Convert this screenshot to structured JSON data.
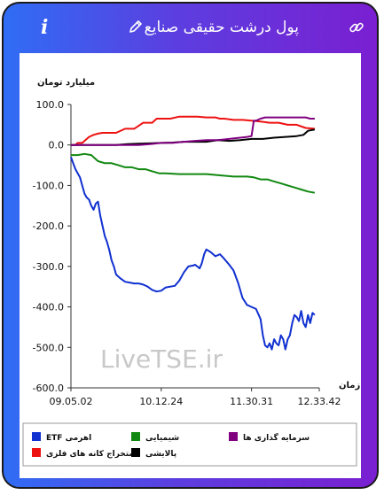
{
  "header": {
    "title": "پول درشت حقیقی صنایع",
    "info_icon": "i",
    "edit_icon": "pencil-icon",
    "link_icon": "link-icon"
  },
  "watermark": "LiveTSE.ir",
  "colors": {
    "frame_start": "#2f6df5",
    "frame_end": "#7a1fd1",
    "etf": "#1030d0",
    "mining": "#ee1111",
    "chemicals": "#118811",
    "refinery": "#000000",
    "investment": "#800080"
  },
  "chart_data": {
    "type": "line",
    "ylabel": "میلیارد تومان",
    "xlabel": "زمان",
    "ylim": [
      -600,
      100
    ],
    "yticks": [
      "100.0",
      "0.0",
      "-100.0",
      "-200.0",
      "-300.0",
      "-400.0",
      "-500.0",
      "-600.0"
    ],
    "ytick_values": [
      100,
      0,
      -100,
      -200,
      -300,
      -400,
      -500,
      -600
    ],
    "x_tick_labels": [
      "09.05.02",
      "10.12.24",
      "11.30.31",
      "12.33.42"
    ],
    "x_tick_positions": [
      0,
      40,
      80,
      110
    ],
    "x_range": [
      0,
      110
    ],
    "grid": false,
    "legend_position": "bottom",
    "series": [
      {
        "name": "ETF اهرمی",
        "color": "#1030d0",
        "x": [
          0,
          1,
          2,
          3,
          4,
          5,
          6,
          7,
          8,
          9,
          10,
          11,
          12,
          13,
          14,
          15,
          16,
          17,
          18,
          19,
          20,
          22,
          24,
          26,
          28,
          30,
          32,
          34,
          36,
          38,
          40,
          42,
          44,
          46,
          48,
          50,
          52,
          54,
          55,
          56,
          57,
          58,
          59,
          60,
          62,
          64,
          66,
          68,
          70,
          72,
          74,
          76,
          78,
          80,
          82,
          84,
          85,
          86,
          87,
          88,
          89,
          90,
          91,
          92,
          93,
          94,
          95,
          96,
          97,
          98,
          99,
          100,
          101,
          102,
          103,
          104,
          105,
          106,
          107,
          108
        ],
        "values": [
          -30,
          -45,
          -60,
          -70,
          -80,
          -100,
          -120,
          -130,
          -135,
          -150,
          -160,
          -145,
          -140,
          -175,
          -200,
          -225,
          -240,
          -260,
          -285,
          -300,
          -320,
          -330,
          -338,
          -340,
          -342,
          -342,
          -345,
          -350,
          -358,
          -362,
          -360,
          -352,
          -350,
          -348,
          -335,
          -315,
          -300,
          -298,
          -296,
          -300,
          -305,
          -292,
          -270,
          -258,
          -265,
          -275,
          -270,
          -282,
          -295,
          -310,
          -340,
          -378,
          -395,
          -400,
          -405,
          -430,
          -470,
          -495,
          -500,
          -490,
          -505,
          -480,
          -490,
          -495,
          -470,
          -480,
          -505,
          -480,
          -470,
          -440,
          -420,
          -425,
          -435,
          -410,
          -440,
          -450,
          -420,
          -440,
          -415,
          -420
        ]
      },
      {
        "name": "استخراج کانه های فلزی",
        "color": "#ee1111",
        "x": [
          0,
          2,
          3,
          5,
          6,
          8,
          10,
          12,
          14,
          16,
          20,
          24,
          28,
          32,
          36,
          38,
          40,
          44,
          48,
          52,
          56,
          60,
          64,
          66,
          68,
          72,
          76,
          80,
          84,
          88,
          90,
          92,
          96,
          100,
          104,
          108
        ],
        "values": [
          0,
          0,
          5,
          5,
          10,
          20,
          25,
          28,
          30,
          30,
          30,
          40,
          40,
          55,
          55,
          65,
          65,
          65,
          70,
          70,
          70,
          68,
          68,
          65,
          65,
          62,
          62,
          60,
          58,
          55,
          55,
          55,
          50,
          50,
          42,
          40
        ]
      },
      {
        "name": "شیمیایی",
        "color": "#118811",
        "x": [
          0,
          3,
          6,
          9,
          12,
          15,
          18,
          21,
          24,
          27,
          30,
          33,
          36,
          39,
          42,
          48,
          54,
          60,
          66,
          72,
          78,
          81,
          84,
          87,
          90,
          93,
          96,
          99,
          102,
          105,
          108
        ],
        "values": [
          -25,
          -25,
          -22,
          -25,
          -40,
          -45,
          -45,
          -50,
          -55,
          -55,
          -60,
          -60,
          -65,
          -70,
          -70,
          -72,
          -72,
          -72,
          -75,
          -78,
          -78,
          -80,
          -85,
          -85,
          -90,
          -95,
          -100,
          -105,
          -110,
          -115,
          -118
        ]
      },
      {
        "name": "پالایشی",
        "color": "#000000",
        "x": [
          0,
          5,
          10,
          15,
          20,
          25,
          30,
          35,
          40,
          45,
          50,
          55,
          60,
          65,
          70,
          75,
          80,
          85,
          90,
          95,
          100,
          103,
          105,
          108
        ],
        "values": [
          0,
          0,
          0,
          0,
          0,
          2,
          3,
          4,
          5,
          6,
          8,
          8,
          8,
          12,
          10,
          12,
          15,
          15,
          18,
          20,
          22,
          25,
          35,
          38
        ]
      },
      {
        "name": "سرمایه گذاری ها",
        "color": "#800080",
        "x": [
          0,
          5,
          10,
          15,
          20,
          25,
          30,
          35,
          40,
          45,
          50,
          55,
          60,
          65,
          70,
          75,
          78,
          80,
          81,
          82,
          84,
          86,
          90,
          95,
          100,
          104,
          106,
          108
        ],
        "values": [
          0,
          0,
          0,
          0,
          0,
          0,
          0,
          2,
          5,
          5,
          8,
          10,
          12,
          12,
          15,
          18,
          20,
          22,
          60,
          60,
          65,
          68,
          68,
          68,
          68,
          68,
          65,
          65
        ]
      }
    ],
    "legend_layout": [
      [
        "ETF اهرمی",
        "شیمیایی",
        "سرمایه گذاری ها"
      ],
      [
        "استخراج کانه های فلزی",
        "پالایشی"
      ]
    ]
  }
}
